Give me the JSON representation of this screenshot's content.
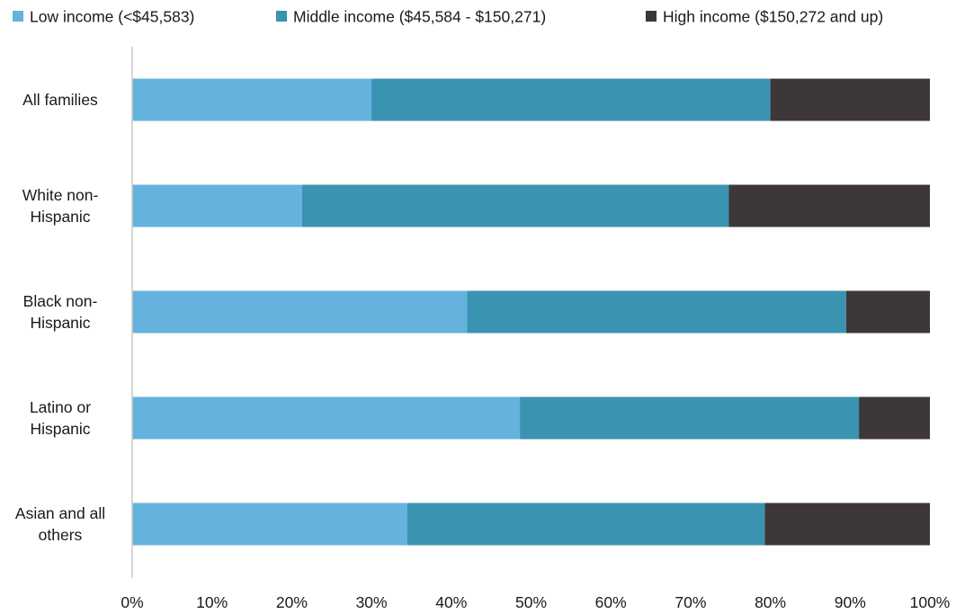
{
  "chart_data": {
    "type": "bar",
    "orientation": "horizontal",
    "stacked": "percent",
    "categories": [
      [
        "All families"
      ],
      [
        "White non-",
        "Hispanic"
      ],
      [
        "Black non-",
        "Hispanic"
      ],
      [
        "Latino or",
        "Hispanic"
      ],
      [
        "Asian and all",
        "others"
      ]
    ],
    "series": [
      {
        "name": "Low income (<$45,583)",
        "color": "#64b2dd",
        "values": [
          30,
          21.3,
          42,
          48.6,
          34.5
        ]
      },
      {
        "name": "Middle income ($45,584 - $150,271)",
        "color": "#3a93b0",
        "values": [
          50,
          53.5,
          47.5,
          42.5,
          44.8
        ]
      },
      {
        "name": "High income ($150,272 and up)",
        "color": "#3e3739",
        "values": [
          20,
          25.2,
          10.5,
          8.9,
          20.7
        ]
      }
    ],
    "xlim": [
      0,
      100
    ],
    "xticks": [
      "0%",
      "10%",
      "20%",
      "30%",
      "40%",
      "50%",
      "60%",
      "70%",
      "80%",
      "90%",
      "100%"
    ],
    "legend_position": "top",
    "grid": false
  }
}
